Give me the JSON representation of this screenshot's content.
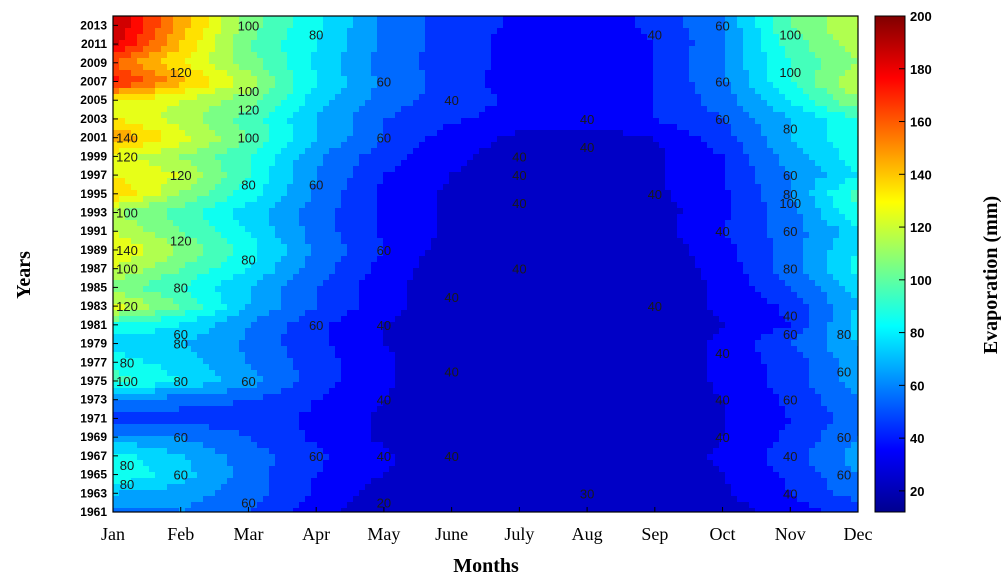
{
  "chart_data": {
    "type": "heatmap",
    "subtype": "filled-contour",
    "xlabel": "Months",
    "ylabel": "Years",
    "colorbar_label": "Evaporation (mm)",
    "x_categories": [
      "Jan",
      "Feb",
      "Mar",
      "Apr",
      "May",
      "June",
      "July",
      "Aug",
      "Sep",
      "Oct",
      "Nov",
      "Dec"
    ],
    "y_ticks": [
      1961,
      1963,
      1965,
      1967,
      1969,
      1971,
      1973,
      1975,
      1977,
      1979,
      1981,
      1983,
      1985,
      1987,
      1989,
      1991,
      1993,
      1995,
      1997,
      1999,
      2001,
      2003,
      2005,
      2007,
      2009,
      2011,
      2013
    ],
    "y_range": [
      1961,
      2014
    ],
    "colorbar_ticks": [
      20,
      40,
      60,
      80,
      100,
      120,
      140,
      160,
      180,
      200
    ],
    "colorbar_range": [
      12,
      200
    ],
    "colormap": "jet",
    "rows": [
      {
        "year": 1961,
        "values": [
          55,
          60,
          50,
          35,
          22,
          20,
          20,
          20,
          20,
          25,
          35,
          45
        ]
      },
      {
        "year": 1963,
        "values": [
          70,
          65,
          55,
          38,
          25,
          20,
          20,
          20,
          22,
          28,
          40,
          55
        ]
      },
      {
        "year": 1965,
        "values": [
          90,
          75,
          55,
          40,
          30,
          22,
          20,
          20,
          22,
          30,
          42,
          60
        ]
      },
      {
        "year": 1967,
        "values": [
          85,
          70,
          55,
          42,
          32,
          22,
          20,
          20,
          22,
          32,
          45,
          65
        ]
      },
      {
        "year": 1969,
        "values": [
          65,
          60,
          50,
          38,
          28,
          22,
          20,
          20,
          22,
          30,
          42,
          60
        ]
      },
      {
        "year": 1971,
        "values": [
          40,
          45,
          45,
          38,
          28,
          22,
          20,
          20,
          22,
          30,
          40,
          55
        ]
      },
      {
        "year": 1973,
        "values": [
          60,
          55,
          50,
          40,
          30,
          22,
          20,
          20,
          22,
          30,
          42,
          60
        ]
      },
      {
        "year": 1975,
        "values": [
          95,
          80,
          65,
          45,
          32,
          22,
          20,
          20,
          22,
          32,
          45,
          65
        ]
      },
      {
        "year": 1977,
        "values": [
          85,
          75,
          60,
          45,
          32,
          22,
          20,
          20,
          22,
          32,
          45,
          65
        ]
      },
      {
        "year": 1979,
        "values": [
          75,
          70,
          58,
          42,
          30,
          22,
          20,
          20,
          22,
          32,
          50,
          70
        ]
      },
      {
        "year": 1981,
        "values": [
          90,
          80,
          60,
          42,
          30,
          22,
          20,
          20,
          22,
          30,
          40,
          75
        ]
      },
      {
        "year": 1983,
        "values": [
          125,
          100,
          70,
          50,
          34,
          22,
          20,
          20,
          22,
          32,
          42,
          70
        ]
      },
      {
        "year": 1985,
        "values": [
          105,
          90,
          70,
          50,
          34,
          22,
          20,
          20,
          22,
          32,
          50,
          75
        ]
      },
      {
        "year": 1987,
        "values": [
          120,
          100,
          80,
          55,
          36,
          22,
          20,
          20,
          22,
          34,
          55,
          85
        ]
      },
      {
        "year": 1989,
        "values": [
          130,
          110,
          85,
          58,
          40,
          25,
          22,
          22,
          24,
          36,
          55,
          80
        ]
      },
      {
        "year": 1991,
        "values": [
          120,
          100,
          80,
          55,
          38,
          28,
          22,
          22,
          25,
          40,
          55,
          75
        ]
      },
      {
        "year": 1993,
        "values": [
          110,
          95,
          75,
          55,
          38,
          28,
          22,
          22,
          25,
          38,
          55,
          90
        ]
      },
      {
        "year": 1995,
        "values": [
          140,
          110,
          85,
          58,
          38,
          28,
          22,
          22,
          28,
          38,
          60,
          95
        ]
      },
      {
        "year": 1997,
        "values": [
          130,
          120,
          90,
          60,
          40,
          30,
          25,
          22,
          28,
          40,
          60,
          80
        ]
      },
      {
        "year": 1999,
        "values": [
          125,
          110,
          90,
          62,
          44,
          32,
          25,
          22,
          28,
          40,
          65,
          85
        ]
      },
      {
        "year": 2001,
        "values": [
          150,
          125,
          100,
          70,
          50,
          35,
          28,
          25,
          30,
          45,
          70,
          90
        ]
      },
      {
        "year": 2003,
        "values": [
          130,
          115,
          95,
          70,
          50,
          42,
          35,
          35,
          40,
          50,
          70,
          90
        ]
      },
      {
        "year": 2005,
        "values": [
          130,
          120,
          105,
          75,
          55,
          45,
          38,
          35,
          40,
          55,
          80,
          110
        ]
      },
      {
        "year": 2007,
        "values": [
          175,
          145,
          115,
          80,
          58,
          45,
          35,
          35,
          40,
          58,
          90,
          120
        ]
      },
      {
        "year": 2009,
        "values": [
          160,
          130,
          105,
          78,
          55,
          45,
          36,
          35,
          40,
          60,
          90,
          110
        ]
      },
      {
        "year": 2011,
        "values": [
          185,
          140,
          100,
          80,
          58,
          45,
          36,
          35,
          40,
          58,
          95,
          115
        ]
      },
      {
        "year": 2013,
        "values": [
          190,
          145,
          105,
          82,
          58,
          45,
          38,
          36,
          42,
          60,
          100,
          120
        ]
      }
    ],
    "contour_labels": [
      {
        "text": "100",
        "x": "Mar",
        "y": 2013
      },
      {
        "text": "80",
        "x": "Apr",
        "y": 2012
      },
      {
        "text": "40",
        "x": "Sep",
        "y": 2012
      },
      {
        "text": "60",
        "x": "Oct",
        "y": 2013
      },
      {
        "text": "100",
        "x": "Nov",
        "y": 2012
      },
      {
        "text": "120",
        "x": "Feb",
        "y": 2008
      },
      {
        "text": "100",
        "x": "Mar",
        "y": 2006
      },
      {
        "text": "60",
        "x": "May",
        "y": 2007
      },
      {
        "text": "40",
        "x": "June",
        "y": 2005
      },
      {
        "text": "60",
        "x": "Oct",
        "y": 2007
      },
      {
        "text": "100",
        "x": "Nov",
        "y": 2008
      },
      {
        "text": "120",
        "x": "Mar",
        "y": 2004
      },
      {
        "text": "60",
        "x": "Oct",
        "y": 2003
      },
      {
        "text": "40",
        "x": "Aug",
        "y": 2003
      },
      {
        "text": "80",
        "x": "Nov",
        "y": 2002
      },
      {
        "text": "140",
        "x": "Jan",
        "y": 2001
      },
      {
        "text": "100",
        "x": "Mar",
        "y": 2001
      },
      {
        "text": "60",
        "x": "May",
        "y": 2001
      },
      {
        "text": "40",
        "x": "Aug",
        "y": 2000
      },
      {
        "text": "120",
        "x": "Jan",
        "y": 1999
      },
      {
        "text": "40",
        "x": "July",
        "y": 1999
      },
      {
        "text": "40",
        "x": "July",
        "y": 1997
      },
      {
        "text": "120",
        "x": "Feb",
        "y": 1997
      },
      {
        "text": "80",
        "x": "Mar",
        "y": 1996
      },
      {
        "text": "60",
        "x": "Apr",
        "y": 1996
      },
      {
        "text": "60",
        "x": "Nov",
        "y": 1997
      },
      {
        "text": "40",
        "x": "July",
        "y": 1994
      },
      {
        "text": "40",
        "x": "Sep",
        "y": 1995
      },
      {
        "text": "80",
        "x": "Nov",
        "y": 1995
      },
      {
        "text": "100",
        "x": "Nov",
        "y": 1994
      },
      {
        "text": "100",
        "x": "Jan",
        "y": 1993
      },
      {
        "text": "40",
        "x": "Oct",
        "y": 1991
      },
      {
        "text": "60",
        "x": "Nov",
        "y": 1991
      },
      {
        "text": "140",
        "x": "Jan",
        "y": 1989
      },
      {
        "text": "120",
        "x": "Feb",
        "y": 1990
      },
      {
        "text": "80",
        "x": "Mar",
        "y": 1988
      },
      {
        "text": "60",
        "x": "May",
        "y": 1989
      },
      {
        "text": "40",
        "x": "July",
        "y": 1987
      },
      {
        "text": "80",
        "x": "Nov",
        "y": 1987
      },
      {
        "text": "100",
        "x": "Jan",
        "y": 1987
      },
      {
        "text": "80",
        "x": "Feb",
        "y": 1985
      },
      {
        "text": "40",
        "x": "June",
        "y": 1984
      },
      {
        "text": "40",
        "x": "Sep",
        "y": 1983
      },
      {
        "text": "120",
        "x": "Jan",
        "y": 1983
      },
      {
        "text": "60",
        "x": "Feb",
        "y": 1980
      },
      {
        "text": "80",
        "x": "Feb",
        "y": 1979
      },
      {
        "text": "60",
        "x": "Apr",
        "y": 1981
      },
      {
        "text": "40",
        "x": "May",
        "y": 1981
      },
      {
        "text": "40",
        "x": "Nov",
        "y": 1982
      },
      {
        "text": "60",
        "x": "Nov",
        "y": 1980
      },
      {
        "text": "80",
        "x": "Dec",
        "y": 1980
      },
      {
        "text": "40",
        "x": "Oct",
        "y": 1978
      },
      {
        "text": "80",
        "x": "Jan",
        "y": 1977
      },
      {
        "text": "40",
        "x": "June",
        "y": 1976
      },
      {
        "text": "60",
        "x": "Dec",
        "y": 1976
      },
      {
        "text": "100",
        "x": "Jan",
        "y": 1975
      },
      {
        "text": "80",
        "x": "Feb",
        "y": 1975
      },
      {
        "text": "60",
        "x": "Mar",
        "y": 1975
      },
      {
        "text": "40",
        "x": "May",
        "y": 1973
      },
      {
        "text": "60",
        "x": "Nov",
        "y": 1973
      },
      {
        "text": "40",
        "x": "Oct",
        "y": 1973
      },
      {
        "text": "60",
        "x": "Feb",
        "y": 1969
      },
      {
        "text": "60",
        "x": "Dec",
        "y": 1969
      },
      {
        "text": "40",
        "x": "May",
        "y": 1967
      },
      {
        "text": "60",
        "x": "Apr",
        "y": 1967
      },
      {
        "text": "40",
        "x": "June",
        "y": 1967
      },
      {
        "text": "40",
        "x": "Oct",
        "y": 1969
      },
      {
        "text": "40",
        "x": "Nov",
        "y": 1967
      },
      {
        "text": "80",
        "x": "Jan",
        "y": 1966
      },
      {
        "text": "60",
        "x": "Feb",
        "y": 1965
      },
      {
        "text": "60",
        "x": "Dec",
        "y": 1965
      },
      {
        "text": "80",
        "x": "Jan",
        "y": 1964
      },
      {
        "text": "30",
        "x": "Aug",
        "y": 1963
      },
      {
        "text": "60",
        "x": "Mar",
        "y": 1962
      },
      {
        "text": "40",
        "x": "Nov",
        "y": 1963
      },
      {
        "text": "20",
        "x": "May",
        "y": 1962
      }
    ]
  }
}
